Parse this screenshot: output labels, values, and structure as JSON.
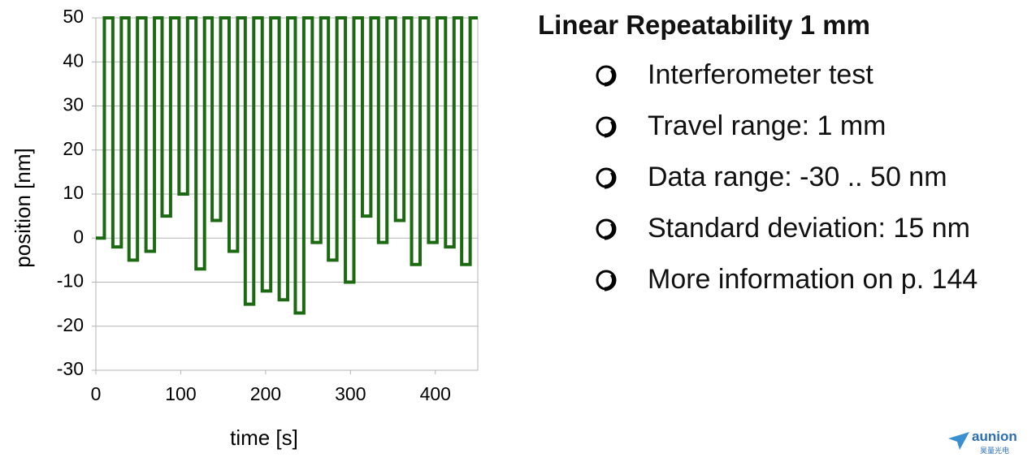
{
  "chart_data": {
    "type": "line",
    "x": [
      0,
      10,
      10,
      20,
      20,
      30,
      30,
      39,
      39,
      49,
      49,
      59,
      59,
      69,
      69,
      78,
      78,
      88,
      88,
      98,
      98,
      108,
      108,
      118,
      118,
      128,
      128,
      137,
      137,
      147,
      147,
      157,
      157,
      167,
      167,
      176,
      176,
      186,
      186,
      196,
      196,
      206,
      206,
      216,
      216,
      226,
      226,
      235,
      235,
      245,
      245,
      255,
      255,
      265,
      265,
      274,
      274,
      284,
      284,
      294,
      294,
      304,
      304,
      314,
      314,
      324,
      324,
      333,
      333,
      343,
      343,
      353,
      353,
      363,
      363,
      372,
      372,
      382,
      382,
      392,
      392,
      402,
      402,
      412,
      412,
      422,
      422,
      431,
      431,
      441,
      441,
      450
    ],
    "values": [
      0,
      0,
      50,
      50,
      -2,
      -2,
      50,
      50,
      -5,
      -5,
      50,
      50,
      -3,
      -3,
      50,
      50,
      5,
      5,
      50,
      50,
      10,
      10,
      50,
      50,
      -7,
      -7,
      50,
      50,
      4,
      4,
      50,
      50,
      -3,
      -3,
      50,
      50,
      -15,
      -15,
      50,
      50,
      -12,
      -12,
      50,
      50,
      -14,
      -14,
      50,
      50,
      -17,
      -17,
      50,
      50,
      -1,
      -1,
      50,
      50,
      -5,
      -5,
      50,
      50,
      -10,
      -10,
      50,
      50,
      5,
      5,
      50,
      50,
      -1,
      -1,
      50,
      50,
      4,
      4,
      50,
      50,
      -6,
      -6,
      50,
      50,
      -1,
      -1,
      50,
      50,
      -2,
      -2,
      50,
      50,
      -6,
      -6,
      50,
      50
    ],
    "color": "#1b6a12",
    "xlabel": "time [s]",
    "ylabel": "position [nm]",
    "xlim": [
      0,
      450
    ],
    "xticks": [
      0,
      100,
      200,
      300,
      400
    ],
    "ylim": [
      -30,
      50
    ],
    "yticks": [
      -30,
      -20,
      -10,
      0,
      10,
      20,
      30,
      40,
      50
    ],
    "grid": true
  },
  "panel": {
    "title": "Linear Repeatability 1 mm",
    "bullets": [
      "Interferometer test",
      "Travel range: 1 mm",
      "Data range: -30 .. 50 nm",
      "Standard deviation: 15 nm",
      "More information on p. 144"
    ]
  },
  "logo": {
    "name": "aunion",
    "subtitle": "昊量光电"
  }
}
